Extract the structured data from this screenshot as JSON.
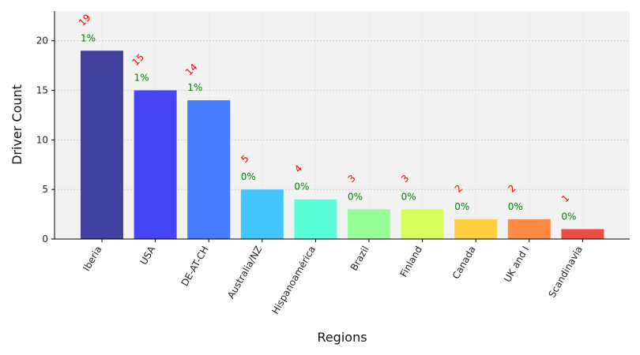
{
  "chart_data": {
    "type": "bar",
    "title": "",
    "xlabel": "Regions",
    "ylabel": "Driver Count",
    "categories": [
      "Iberia",
      "USA",
      "DE-AT-CH",
      "Australia/NZ",
      "Hispanoamérica",
      "Brazil",
      "Finland",
      "Canada",
      "UK and I",
      "Scandinavia"
    ],
    "values": [
      19,
      15,
      14,
      5,
      4,
      3,
      3,
      2,
      2,
      1
    ],
    "value_labels": [
      "19",
      "15",
      "14",
      "5",
      "4",
      "3",
      "3",
      "2",
      "2",
      "1"
    ],
    "percent_labels": [
      "1%",
      "1%",
      "1%",
      "0%",
      "0%",
      "0%",
      "0%",
      "0%",
      "0%",
      "0%"
    ],
    "bar_colors": [
      "#2d2d96",
      "#3232f5",
      "#3270ff",
      "#32c0ff",
      "#4affd6",
      "#8dff8d",
      "#d2ff4a",
      "#ffcc2d",
      "#ff8030",
      "#ee3a2d"
    ],
    "ylim": [
      0,
      23
    ],
    "yticks": [
      0,
      5,
      10,
      15,
      20
    ],
    "grid": true,
    "background": "#f2f2f2",
    "value_label_color": "#ff0000",
    "percent_label_color": "#008000"
  }
}
